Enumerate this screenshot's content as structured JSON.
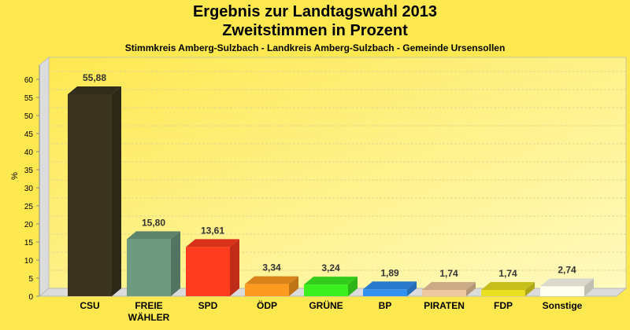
{
  "chart_data": {
    "type": "bar",
    "title": "Ergebnis zur Landtagswahl 2013",
    "subtitle": "Zweitstimmen in Prozent",
    "caption": "Stimmkreis Amberg-Sulzbach - Landkreis Amberg-Sulzbach - Gemeinde Ursensollen",
    "xlabel": "",
    "ylabel": "%",
    "ylim": [
      0,
      60
    ],
    "yticks": [
      0,
      5,
      10,
      15,
      20,
      25,
      30,
      35,
      40,
      45,
      50,
      55,
      60
    ],
    "grid": true,
    "categories": [
      "CSU",
      "FREIE WÄHLER",
      "SPD",
      "ÖDP",
      "GRÜNE",
      "BP",
      "PIRATEN",
      "FDP",
      "Sonstige"
    ],
    "category_lines": [
      [
        "CSU"
      ],
      [
        "FREIE",
        "WÄHLER"
      ],
      [
        "SPD"
      ],
      [
        "ÖDP"
      ],
      [
        "GRÜNE"
      ],
      [
        "BP"
      ],
      [
        "PIRATEN"
      ],
      [
        "FDP"
      ],
      [
        "Sonstige"
      ]
    ],
    "values": [
      55.88,
      15.8,
      13.61,
      3.34,
      3.24,
      1.89,
      1.74,
      1.74,
      2.74
    ],
    "value_labels": [
      "55,88",
      "15,80",
      "13,61",
      "3,34",
      "3,24",
      "1,89",
      "1,74",
      "1,74",
      "2,74"
    ],
    "colors": [
      "#3b3520",
      "#6e9a80",
      "#ff3b20",
      "#ff9a20",
      "#3cf020",
      "#3090f0",
      "#f0c8a0",
      "#e8e020",
      "#fffff0"
    ]
  }
}
